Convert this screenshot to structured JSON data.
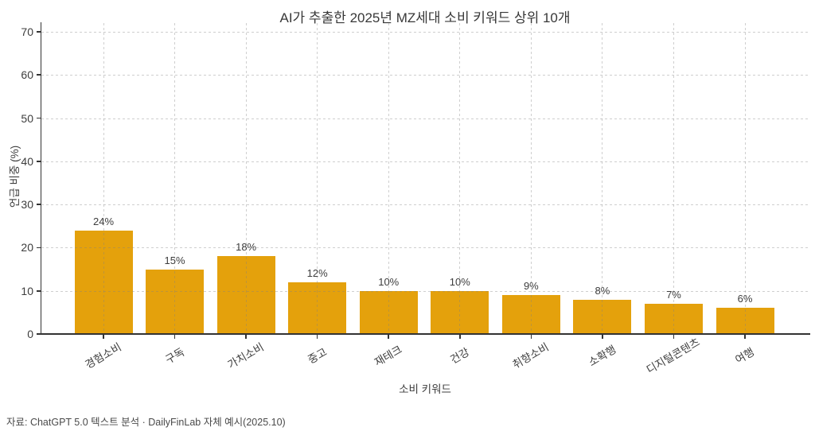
{
  "figure": {
    "title": "AI가 추출한 2025년 MZ세대 소비 키워드 상위 10개",
    "source_note": "자료: ChatGPT 5.0 텍스트 분석 · DailyFinLab 자체 예시(2025.10)"
  },
  "chart_data": {
    "type": "bar",
    "title": "AI가 추출한 2025년 MZ세대 소비 키워드 상위 10개",
    "categories": [
      "경험소비",
      "구독",
      "가치소비",
      "중고",
      "재테크",
      "건강",
      "취향소비",
      "소확행",
      "디지털콘텐츠",
      "여행"
    ],
    "values": [
      24,
      15,
      18,
      12,
      10,
      10,
      9,
      8,
      7,
      6
    ],
    "value_label_suffix": "%",
    "xlabel": "소비 키워드",
    "ylabel": "언급 비중 (%)",
    "ylim": [
      0,
      70
    ],
    "yticks": [
      0,
      10,
      20,
      30,
      40,
      50,
      60,
      70
    ],
    "grid": {
      "horizontal": true,
      "vertical": true,
      "style": "dashed"
    },
    "legend": null,
    "bar_color": "#E4A10C",
    "source_note": "자료: ChatGPT 5.0 텍스트 분석 · DailyFinLab 자체 예시(2025.10)"
  },
  "colors": {
    "bar": "#E4A10C",
    "title_text": "#383838",
    "tick_text": "#3d3d3d",
    "grid": "#d2d2d2",
    "axis": "#333333",
    "background": "#ffffff"
  }
}
